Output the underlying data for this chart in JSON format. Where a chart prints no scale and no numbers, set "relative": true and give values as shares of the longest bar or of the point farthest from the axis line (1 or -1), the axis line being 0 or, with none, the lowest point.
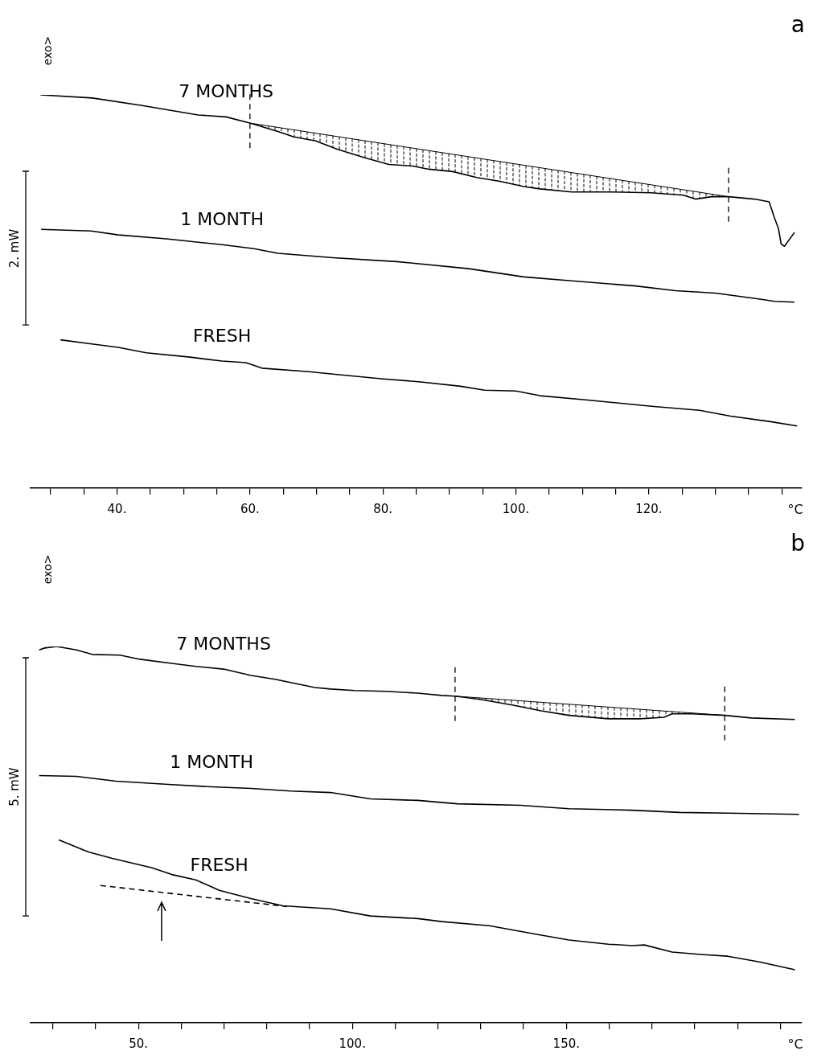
{
  "chart_data": [
    {
      "type": "line",
      "title": "a",
      "ylabel": "exo>",
      "xlabel": "°C",
      "annotations": [
        "2. mW"
      ],
      "relative": true,
      "xlim": [
        27,
        143
      ],
      "xticks": [
        {
          "value": 30,
          "label": null
        },
        {
          "value": 35,
          "label": null
        },
        {
          "value": 40,
          "label": "40."
        },
        {
          "value": 45,
          "label": null
        },
        {
          "value": 50,
          "label": null
        },
        {
          "value": 55,
          "label": null
        },
        {
          "value": 60,
          "label": "60."
        },
        {
          "value": 65,
          "label": null
        },
        {
          "value": 70,
          "label": null
        },
        {
          "value": 75,
          "label": null
        },
        {
          "value": 80,
          "label": "80."
        },
        {
          "value": 85,
          "label": null
        },
        {
          "value": 90,
          "label": null
        },
        {
          "value": 95,
          "label": null
        },
        {
          "value": 100,
          "label": "100."
        },
        {
          "value": 105,
          "label": null
        },
        {
          "value": 110,
          "label": null
        },
        {
          "value": 115,
          "label": null
        },
        {
          "value": 120,
          "label": "120."
        },
        {
          "value": 125,
          "label": null
        },
        {
          "value": 130,
          "label": null
        },
        {
          "value": 135,
          "label": null
        },
        {
          "value": 140,
          "label": null
        }
      ],
      "ref_lines": [
        {
          "axis": "x",
          "value": 60,
          "color": "#000000",
          "line_style": "dashed"
        },
        {
          "axis": "x",
          "value": 132,
          "color": "#000000",
          "line_style": "dashed"
        }
      ],
      "series": [
        {
          "name": "7 MONTHS",
          "color": "#000000",
          "x": [
            28.5,
            36.3,
            43.8,
            52.2,
            56.4,
            60.1,
            64.2,
            66.6,
            69.9,
            73.1,
            77.3,
            80.9,
            84.5,
            86.9,
            90.5,
            94.1,
            97.6,
            101.2,
            103.6,
            108.4,
            114.4,
            120.3,
            125.2,
            127.0,
            129.4,
            132.0,
            135.9,
            138.1,
            138.9,
            139.5,
            139.9,
            140.4,
            141.9
          ],
          "values": [
            1.0,
            0.992,
            0.973,
            0.949,
            0.944,
            0.928,
            0.907,
            0.893,
            0.883,
            0.862,
            0.84,
            0.823,
            0.819,
            0.811,
            0.805,
            0.79,
            0.78,
            0.767,
            0.761,
            0.753,
            0.753,
            0.751,
            0.745,
            0.735,
            0.741,
            0.741,
            0.735,
            0.728,
            0.687,
            0.66,
            0.621,
            0.615,
            0.65
          ]
        },
        {
          "type": "line",
          "color": "#000000",
          "x": [
            60.1,
            132.0
          ],
          "values": [
            0.928,
            0.741
          ]
        },
        {
          "name": "1 MONTH",
          "color": "#000000",
          "x": [
            28.6,
            36.1,
            40.2,
            47.4,
            55.8,
            60.6,
            64.2,
            72.5,
            82.1,
            92.9,
            101.2,
            108.4,
            118.0,
            124.0,
            130.0,
            136.5,
            138.9,
            141.9
          ],
          "values": [
            0.658,
            0.654,
            0.644,
            0.634,
            0.619,
            0.609,
            0.597,
            0.586,
            0.576,
            0.558,
            0.537,
            0.527,
            0.514,
            0.502,
            0.496,
            0.481,
            0.475,
            0.473
          ]
        },
        {
          "name": "FRESH",
          "color": "#000000",
          "x": [
            31.5,
            35.5,
            40.2,
            44.4,
            51.0,
            55.8,
            59.4,
            61.8,
            68.9,
            72.5,
            79.7,
            85.7,
            91.7,
            95.3,
            100.0,
            103.6,
            110.8,
            120.4,
            127.6,
            132.3,
            138.3,
            142.3
          ],
          "values": [
            0.377,
            0.368,
            0.358,
            0.344,
            0.333,
            0.323,
            0.319,
            0.305,
            0.296,
            0.29,
            0.278,
            0.27,
            0.259,
            0.249,
            0.247,
            0.235,
            0.224,
            0.208,
            0.198,
            0.183,
            0.169,
            0.158
          ]
        }
      ]
    },
    {
      "type": "line",
      "title": "b",
      "ylabel": "exo>",
      "xlabel": "°C",
      "annotations": [
        "5. mW"
      ],
      "relative": true,
      "xlim": [
        24.8,
        205
      ],
      "xticks": [
        {
          "value": 30,
          "label": null
        },
        {
          "value": 40,
          "label": null
        },
        {
          "value": 50,
          "label": "50."
        },
        {
          "value": 60,
          "label": null
        },
        {
          "value": 70,
          "label": null
        },
        {
          "value": 80,
          "label": null
        },
        {
          "value": 90,
          "label": null
        },
        {
          "value": 100,
          "label": "100."
        },
        {
          "value": 110,
          "label": null
        },
        {
          "value": 120,
          "label": null
        },
        {
          "value": 130,
          "label": null
        },
        {
          "value": 140,
          "label": null
        },
        {
          "value": 150,
          "label": "150."
        },
        {
          "value": 160,
          "label": null
        },
        {
          "value": 170,
          "label": null
        },
        {
          "value": 180,
          "label": null
        },
        {
          "value": 190,
          "label": null
        },
        {
          "value": 200,
          "label": null
        }
      ],
      "ref_lines": [
        {
          "axis": "x",
          "value": 124,
          "color": "#000000",
          "line_style": "dashed"
        },
        {
          "axis": "x",
          "value": 187,
          "color": "#000000",
          "line_style": "dashed"
        }
      ],
      "series": [
        {
          "name": "7 MONTHS",
          "color": "#000000",
          "x": [
            26.8,
            28.1,
            30.9,
            35.5,
            39.2,
            45.7,
            50.4,
            57.8,
            63.4,
            69.9,
            76.3,
            81.9,
            91.2,
            94.9,
            100.5,
            107.9,
            115.3,
            117.2,
            120.9,
            124.0,
            130.1,
            137.6,
            144.1,
            150.6,
            159.8,
            167.3,
            172.8,
            174.7,
            179.3,
            187.1,
            193.2,
            203.4
          ],
          "values": [
            0.991,
            0.996,
            1.0,
            0.991,
            0.979,
            0.977,
            0.966,
            0.955,
            0.947,
            0.94,
            0.923,
            0.913,
            0.891,
            0.887,
            0.883,
            0.881,
            0.876,
            0.874,
            0.87,
            0.868,
            0.859,
            0.844,
            0.829,
            0.817,
            0.808,
            0.808,
            0.812,
            0.821,
            0.821,
            0.817,
            0.81,
            0.806
          ]
        },
        {
          "type": "line",
          "color": "#000000",
          "x": [
            124.0,
            187.1
          ],
          "values": [
            0.868,
            0.817
          ]
        },
        {
          "name": "1 MONTH",
          "color": "#000000",
          "x": [
            26.8,
            35.5,
            44.8,
            57.8,
            67.1,
            76.3,
            85.6,
            94.9,
            104.2,
            115.3,
            124.5,
            139.4,
            150.6,
            165.4,
            176.5,
            187.7,
            204.4
          ],
          "values": [
            0.657,
            0.655,
            0.642,
            0.633,
            0.627,
            0.623,
            0.616,
            0.612,
            0.595,
            0.591,
            0.582,
            0.578,
            0.569,
            0.565,
            0.559,
            0.557,
            0.554
          ]
        },
        {
          "name": "FRESH",
          "color": "#000000",
          "x": [
            31.4,
            38.3,
            43.9,
            53.2,
            57.8,
            63.4,
            68.9,
            76.3,
            83.8,
            94.9,
            104.2,
            115.3,
            120.9,
            132.0,
            143.1,
            150.6,
            159.8,
            165.4,
            168.2,
            174.7,
            182.1,
            187.7,
            195.1,
            203.4
          ],
          "values": [
            0.486,
            0.454,
            0.437,
            0.412,
            0.394,
            0.38,
            0.352,
            0.33,
            0.311,
            0.303,
            0.284,
            0.277,
            0.269,
            0.258,
            0.235,
            0.22,
            0.209,
            0.205,
            0.207,
            0.188,
            0.181,
            0.177,
            0.162,
            0.141
          ]
        },
        {
          "type": "line",
          "color": "#000000",
          "line_style": "dashed",
          "x": [
            41.1,
            84.7
          ],
          "values": [
            0.365,
            0.309
          ]
        }
      ]
    }
  ]
}
